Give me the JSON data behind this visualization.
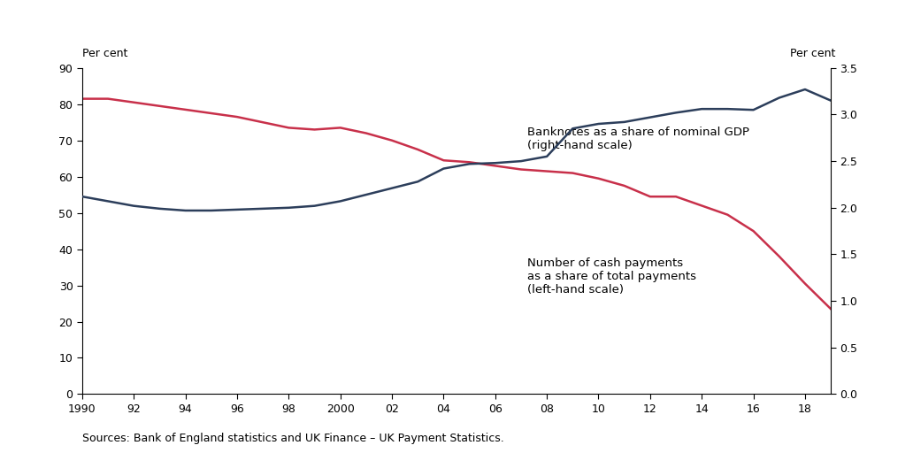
{
  "cash_payments_years": [
    1990,
    1991,
    1992,
    1993,
    1994,
    1995,
    1996,
    1997,
    1998,
    1999,
    2000,
    2001,
    2002,
    2003,
    2004,
    2005,
    2006,
    2007,
    2008,
    2009,
    2010,
    2011,
    2012,
    2013,
    2014,
    2015,
    2016,
    2017,
    2018,
    2019
  ],
  "cash_payments_values": [
    81.5,
    81.5,
    80.5,
    79.5,
    78.5,
    77.5,
    76.5,
    75.0,
    73.5,
    73.0,
    73.5,
    72.0,
    70.0,
    67.5,
    64.5,
    64.0,
    63.0,
    62.0,
    61.5,
    61.0,
    59.5,
    57.5,
    54.5,
    54.5,
    52.0,
    49.5,
    45.0,
    38.0,
    30.5,
    23.5
  ],
  "banknotes_years": [
    1990,
    1991,
    1992,
    1993,
    1994,
    1995,
    1996,
    1997,
    1998,
    1999,
    2000,
    2001,
    2002,
    2003,
    2004,
    2005,
    2006,
    2007,
    2008,
    2009,
    2010,
    2011,
    2012,
    2013,
    2014,
    2015,
    2016,
    2017,
    2018,
    2019
  ],
  "banknotes_values": [
    2.12,
    2.07,
    2.02,
    1.99,
    1.97,
    1.97,
    1.98,
    1.99,
    2.0,
    2.02,
    2.07,
    2.14,
    2.21,
    2.28,
    2.42,
    2.47,
    2.48,
    2.5,
    2.55,
    2.85,
    2.9,
    2.92,
    2.97,
    3.02,
    3.06,
    3.06,
    3.05,
    3.18,
    3.27,
    3.15
  ],
  "cash_color": "#C8304A",
  "banknotes_color": "#2C3E5B",
  "left_ylim": [
    0,
    90
  ],
  "right_ylim": [
    0.0,
    3.5
  ],
  "left_yticks": [
    0,
    10,
    20,
    30,
    40,
    50,
    60,
    70,
    80,
    90
  ],
  "right_yticks": [
    0.0,
    0.5,
    1.0,
    1.5,
    2.0,
    2.5,
    3.0,
    3.5
  ],
  "xlim": [
    1990,
    2019
  ],
  "xticks": [
    1990,
    1992,
    1994,
    1996,
    1998,
    2000,
    2002,
    2004,
    2006,
    2008,
    2010,
    2012,
    2014,
    2016,
    2018
  ],
  "xticklabels": [
    "1990",
    "92",
    "94",
    "96",
    "98",
    "2000",
    "02",
    "04",
    "06",
    "08",
    "10",
    "12",
    "14",
    "16",
    "18"
  ],
  "left_ylabel": "Per cent",
  "right_ylabel": "Per cent",
  "annotation_banknotes": "Banknotes as a share of nominal GDP\n(right-hand scale)",
  "annotation_cash": "Number of cash payments\nas a share of total payments\n(left-hand scale)",
  "source_text": "Sources: Bank of England statistics and UK Finance – UK Payment Statistics.",
  "background_color": "#FFFFFF",
  "line_width": 1.8,
  "tick_fontsize": 9,
  "annot_fontsize": 9.5
}
